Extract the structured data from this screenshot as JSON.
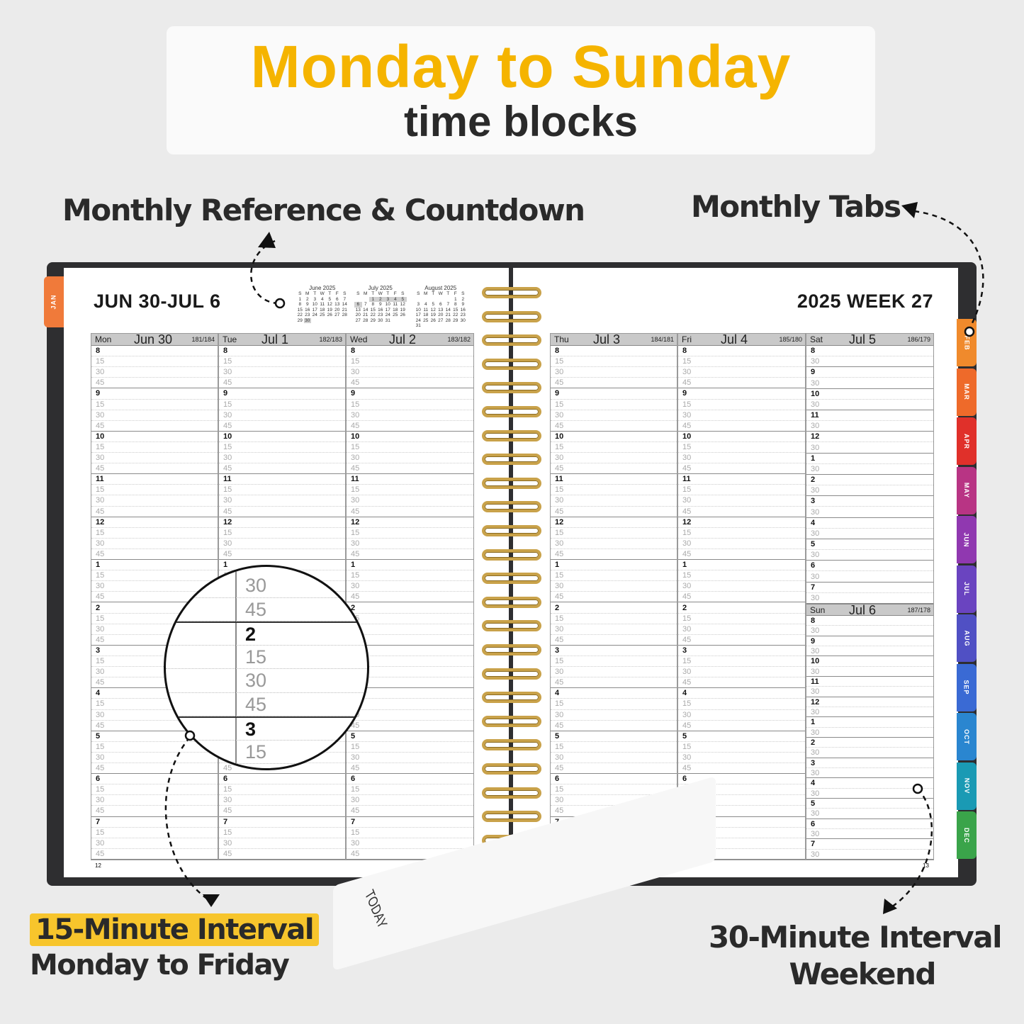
{
  "headline": {
    "title": "Monday to Sunday",
    "subtitle": "time blocks"
  },
  "callouts": {
    "monthly_reference": "Monthly Reference & Countdown",
    "monthly_tabs": "Monthly Tabs",
    "weekday_interval": "15-Minute Interval",
    "weekday_days": "Monday to Friday",
    "weekend_interval": "30-Minute Interval",
    "weekend_days": "Weekend"
  },
  "colors": {
    "accent": "#f5b400",
    "cover": "#2e2e30",
    "rings": "#c9a24a"
  },
  "left_page": {
    "date_range": "JUN 30-JUL 6",
    "page_number": "12"
  },
  "right_page": {
    "week_label": "2025  WEEK  27",
    "page_number": "13"
  },
  "mini_calendars": [
    {
      "title": "June 2025",
      "days": [
        "S",
        "M",
        "T",
        "W",
        "T",
        "F",
        "S"
      ],
      "weeks": [
        [
          "1",
          "2",
          "3",
          "4",
          "5",
          "6",
          "7"
        ],
        [
          "8",
          "9",
          "10",
          "11",
          "12",
          "13",
          "14"
        ],
        [
          "15",
          "16",
          "17",
          "18",
          "19",
          "20",
          "21"
        ],
        [
          "22",
          "23",
          "24",
          "25",
          "26",
          "27",
          "28"
        ],
        [
          "29",
          "30",
          "",
          "",
          "",
          "",
          ""
        ]
      ],
      "highlight": [
        "30"
      ]
    },
    {
      "title": "July 2025",
      "days": [
        "S",
        "M",
        "T",
        "W",
        "T",
        "F",
        "S"
      ],
      "weeks": [
        [
          "",
          "",
          "1",
          "2",
          "3",
          "4",
          "5"
        ],
        [
          "6",
          "7",
          "8",
          "9",
          "10",
          "11",
          "12"
        ],
        [
          "13",
          "14",
          "15",
          "16",
          "17",
          "18",
          "19"
        ],
        [
          "20",
          "21",
          "22",
          "23",
          "24",
          "25",
          "26"
        ],
        [
          "27",
          "28",
          "29",
          "30",
          "31",
          "",
          ""
        ]
      ],
      "highlight": [
        "1",
        "2",
        "3",
        "4",
        "5",
        "6"
      ]
    },
    {
      "title": "August 2025",
      "days": [
        "S",
        "M",
        "T",
        "W",
        "T",
        "F",
        "S"
      ],
      "weeks": [
        [
          "",
          "",
          "",
          "",
          "",
          "1",
          "2"
        ],
        [
          "3",
          "4",
          "5",
          "6",
          "7",
          "8",
          "9"
        ],
        [
          "10",
          "11",
          "12",
          "13",
          "14",
          "15",
          "16"
        ],
        [
          "17",
          "18",
          "19",
          "20",
          "21",
          "22",
          "23"
        ],
        [
          "24",
          "25",
          "26",
          "27",
          "28",
          "29",
          "30"
        ],
        [
          "31",
          "",
          "",
          "",
          "",
          "",
          ""
        ]
      ],
      "highlight": []
    }
  ],
  "hours": [
    "8",
    "9",
    "10",
    "11",
    "12",
    "1",
    "2",
    "3",
    "4",
    "5",
    "6",
    "7"
  ],
  "weekday_minutes": [
    "15",
    "30",
    "45"
  ],
  "weekend_minutes": [
    "30"
  ],
  "weekdays": [
    {
      "name": "Mon",
      "date": "Jun 30",
      "count": "181/184"
    },
    {
      "name": "Tue",
      "date": "Jul 1",
      "count": "182/183"
    },
    {
      "name": "Wed",
      "date": "Jul 2",
      "count": "183/182"
    },
    {
      "name": "Thu",
      "date": "Jul 3",
      "count": "184/181"
    },
    {
      "name": "Fri",
      "date": "Jul 4",
      "count": "185/180"
    }
  ],
  "saturday": {
    "name": "Sat",
    "date": "Jul 5",
    "count": "186/179"
  },
  "sunday": {
    "name": "Sun",
    "date": "Jul 6",
    "count": "187/178"
  },
  "magnifier_rows": [
    {
      "t": "30",
      "b": false
    },
    {
      "t": "45",
      "b": false
    },
    {
      "t": "2",
      "b": true
    },
    {
      "t": "15",
      "b": false
    },
    {
      "t": "30",
      "b": false
    },
    {
      "t": "45",
      "b": false
    },
    {
      "t": "3",
      "b": true
    },
    {
      "t": "15",
      "b": false
    }
  ],
  "tabs": [
    {
      "label": "JAN",
      "color": "#f07a3a"
    },
    {
      "label": "FEB",
      "color": "#f08a2c"
    },
    {
      "label": "MAR",
      "color": "#ee6a2a"
    },
    {
      "label": "APR",
      "color": "#e0302a"
    },
    {
      "label": "MAY",
      "color": "#b83484"
    },
    {
      "label": "JUN",
      "color": "#9038b0"
    },
    {
      "label": "JUL",
      "color": "#6a44c0"
    },
    {
      "label": "AUG",
      "color": "#5050c4"
    },
    {
      "label": "SEP",
      "color": "#3a6ad4"
    },
    {
      "label": "OCT",
      "color": "#2a86d0"
    },
    {
      "label": "NOV",
      "color": "#1a9ab4"
    },
    {
      "label": "DEC",
      "color": "#3aa44a"
    }
  ],
  "bookmark": {
    "label": "TODAY"
  }
}
